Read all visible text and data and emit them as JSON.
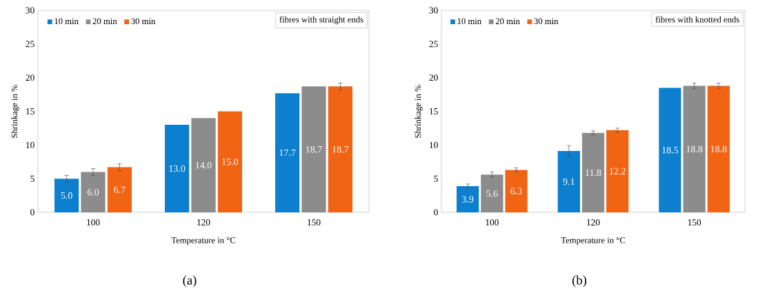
{
  "chart_data": [
    {
      "type": "bar",
      "categories": [
        "100",
        "120",
        "150"
      ],
      "xlabel": "Temperature in °C",
      "ylabel": "Shrinkage in %",
      "ylim": [
        0,
        30
      ],
      "yticks": [
        0,
        5,
        10,
        15,
        20,
        25,
        30
      ],
      "legend": "top left",
      "grid": false,
      "annotations": [
        "fibres with straight ends",
        "(a)"
      ],
      "series": [
        {
          "name": "10 min",
          "color": "#0d7fcf",
          "values": [
            5.0,
            13.0,
            17.7
          ],
          "errors": [
            0.5,
            null,
            null
          ],
          "value_labels": [
            "5.0",
            "13.0",
            "17.7"
          ]
        },
        {
          "name": "20 min",
          "color": "#8c8c8c",
          "values": [
            6.0,
            14.0,
            18.7
          ],
          "errors": [
            0.5,
            null,
            null
          ],
          "value_labels": [
            "6.0",
            "14.0",
            "18.7"
          ]
        },
        {
          "name": "30 min",
          "color": "#f06414",
          "values": [
            6.7,
            15.0,
            18.7
          ],
          "errors": [
            0.5,
            null,
            0.5
          ],
          "value_labels": [
            "6.7",
            "15.0",
            "18.7"
          ]
        }
      ]
    },
    {
      "type": "bar",
      "categories": [
        "100",
        "120",
        "150"
      ],
      "xlabel": "Temperature in °C",
      "ylabel": "Shrinkage in %",
      "ylim": [
        0,
        30
      ],
      "yticks": [
        0,
        5,
        10,
        15,
        20,
        25,
        30
      ],
      "legend": "top left",
      "grid": false,
      "annotations": [
        "fibres with knotted ends",
        "(b)"
      ],
      "series": [
        {
          "name": "10 min",
          "color": "#0d7fcf",
          "values": [
            3.9,
            9.1,
            18.5
          ],
          "errors": [
            0.3,
            0.8,
            null
          ],
          "value_labels": [
            "3.9",
            "9.1",
            "18.5"
          ]
        },
        {
          "name": "20 min",
          "color": "#8c8c8c",
          "values": [
            5.6,
            11.8,
            18.8
          ],
          "errors": [
            0.4,
            0.3,
            0.4
          ],
          "value_labels": [
            "5.6",
            "11.8",
            "18.8"
          ]
        },
        {
          "name": "30 min",
          "color": "#f06414",
          "values": [
            6.3,
            12.2,
            18.8
          ],
          "errors": [
            0.3,
            0.3,
            0.4
          ],
          "value_labels": [
            "6.3",
            "12.2",
            "18.8"
          ]
        }
      ]
    }
  ]
}
